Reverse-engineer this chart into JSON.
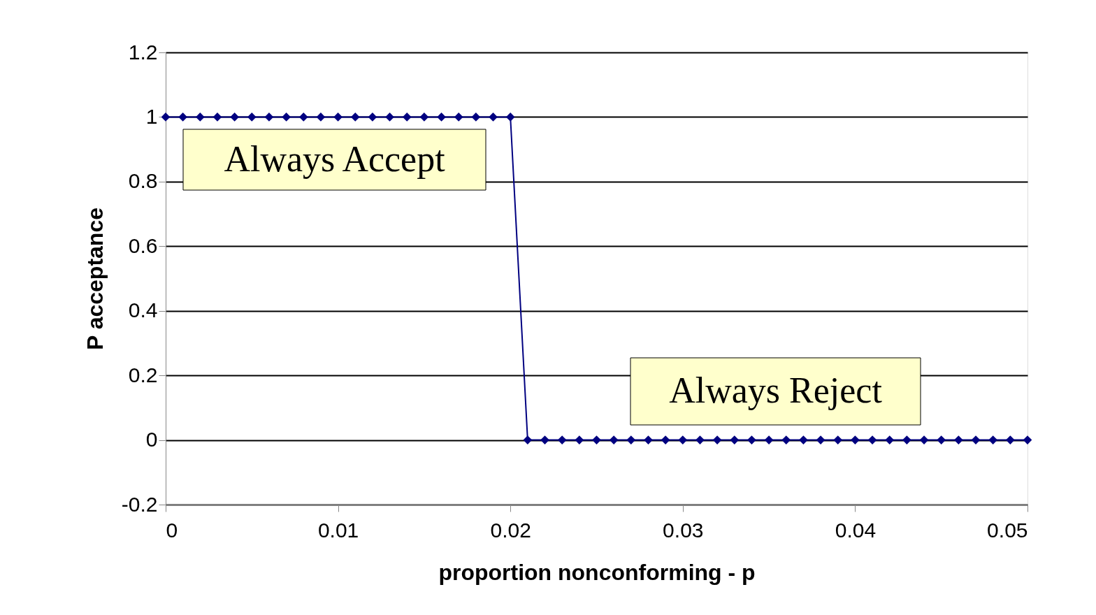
{
  "chart_data": {
    "type": "line",
    "xlabel": "proportion nonconforming - p",
    "ylabel": "P acceptance",
    "x": [
      0,
      0.001,
      0.002,
      0.003,
      0.004,
      0.005,
      0.006,
      0.007,
      0.008,
      0.009,
      0.01,
      0.011,
      0.012,
      0.013,
      0.014,
      0.015,
      0.016,
      0.017,
      0.018,
      0.019,
      0.02,
      0.021,
      0.022,
      0.023,
      0.024,
      0.025,
      0.026,
      0.027,
      0.028,
      0.029,
      0.03,
      0.031,
      0.032,
      0.033,
      0.034,
      0.035,
      0.036,
      0.037,
      0.038,
      0.039,
      0.04,
      0.041,
      0.042,
      0.043,
      0.044,
      0.045,
      0.046,
      0.047,
      0.048,
      0.049,
      0.05
    ],
    "series": [
      {
        "color": "#000080",
        "values": [
          1,
          1,
          1,
          1,
          1,
          1,
          1,
          1,
          1,
          1,
          1,
          1,
          1,
          1,
          1,
          1,
          1,
          1,
          1,
          1,
          1,
          0,
          0,
          0,
          0,
          0,
          0,
          0,
          0,
          0,
          0,
          0,
          0,
          0,
          0,
          0,
          0,
          0,
          0,
          0,
          0,
          0,
          0,
          0,
          0,
          0,
          0,
          0,
          0,
          0,
          0
        ]
      }
    ],
    "xlim": [
      0,
      0.05
    ],
    "xticks": [
      0,
      0.01,
      0.02,
      0.03,
      0.04,
      0.05
    ],
    "ylim": [
      -0.2,
      1.2
    ],
    "yticks": [
      -0.2,
      0,
      0.2,
      0.4,
      0.6,
      0.8,
      1,
      1.2
    ],
    "grid": "y",
    "marker": "diamond",
    "line_style": "solid",
    "annotations": [
      "Always Accept",
      "Always Reject"
    ]
  }
}
